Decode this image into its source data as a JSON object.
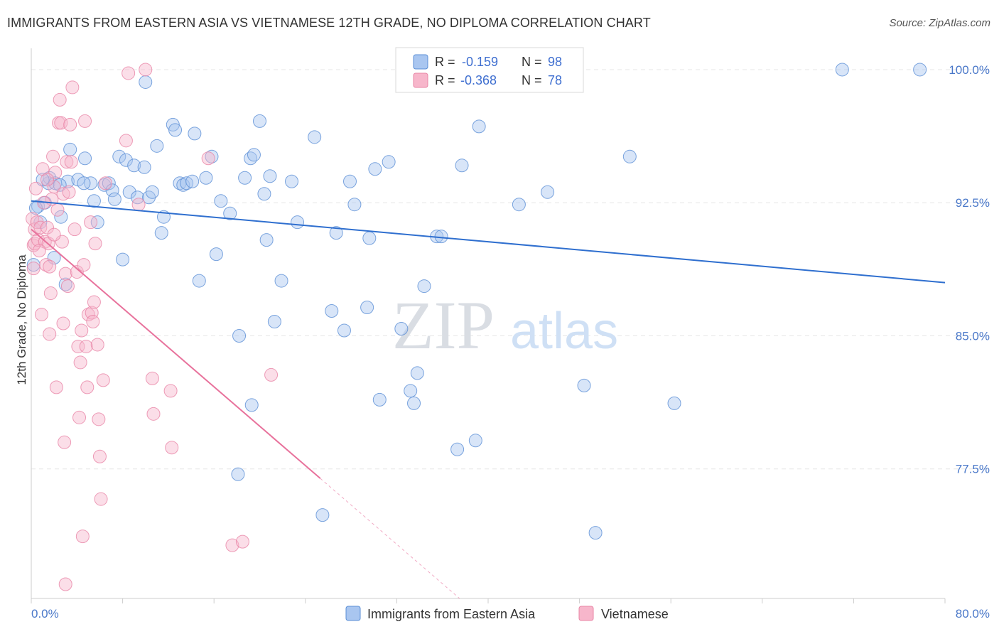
{
  "title": "IMMIGRANTS FROM EASTERN ASIA VS VIETNAMESE 12TH GRADE, NO DIPLOMA CORRELATION CHART",
  "source": "Source: ZipAtlas.com",
  "watermark": {
    "zip": "ZIP",
    "atlas": "atlas"
  },
  "legend_box": {
    "rows": [
      {
        "r_label": "R =",
        "r_value": "-0.159",
        "n_label": "N =",
        "n_value": "98",
        "color": "#a9c6f0"
      },
      {
        "r_label": "R =",
        "r_value": "-0.368",
        "n_label": "N =",
        "n_value": "78",
        "color": "#f7b6cb"
      }
    ]
  },
  "chart_data": {
    "type": "scatter",
    "title": "IMMIGRANTS FROM EASTERN ASIA VS VIETNAMESE 12TH GRADE, NO DIPLOMA CORRELATION CHART",
    "xlabel": "",
    "ylabel": "12th Grade, No Diploma",
    "xlim": [
      0,
      80
    ],
    "ylim": [
      70.2,
      101.2
    ],
    "x_tick_labels": [
      "0.0%",
      "80.0%"
    ],
    "y_ticks": [
      77.5,
      85.0,
      92.5,
      100.0
    ],
    "y_tick_labels": [
      "77.5%",
      "85.0%",
      "92.5%",
      "100.0%"
    ],
    "grid": true,
    "legend_position": "bottom",
    "series": [
      {
        "name": "Immigrants from Eastern Asia",
        "color": "#a9c6f0",
        "stroke": "#5b8fd6",
        "line_color": "#2f6fcf",
        "trend": {
          "x": [
            0,
            80
          ],
          "y": [
            92.6,
            88.0
          ],
          "dashed_after": null
        },
        "points": [
          [
            0.2,
            89.0
          ],
          [
            0.6,
            92.3
          ],
          [
            0.8,
            91.4
          ],
          [
            1.2,
            92.5
          ],
          [
            1.5,
            93.6
          ],
          [
            1.6,
            93.9
          ],
          [
            2.1,
            93.6
          ],
          [
            3.2,
            93.7
          ],
          [
            2.0,
            89.4
          ],
          [
            2.6,
            91.7
          ],
          [
            3.0,
            87.9
          ],
          [
            3.4,
            95.5
          ],
          [
            4.1,
            93.8
          ],
          [
            4.7,
            95.0
          ],
          [
            5.2,
            93.6
          ],
          [
            5.5,
            92.6
          ],
          [
            5.8,
            91.4
          ],
          [
            6.4,
            93.5
          ],
          [
            6.8,
            93.6
          ],
          [
            7.1,
            93.2
          ],
          [
            7.3,
            92.7
          ],
          [
            7.7,
            95.1
          ],
          [
            8.0,
            89.3
          ],
          [
            8.3,
            94.9
          ],
          [
            8.6,
            93.1
          ],
          [
            9.0,
            94.6
          ],
          [
            9.3,
            92.8
          ],
          [
            9.9,
            94.5
          ],
          [
            10.3,
            92.8
          ],
          [
            10.6,
            93.1
          ],
          [
            11.0,
            95.7
          ],
          [
            11.6,
            91.7
          ],
          [
            11.4,
            90.8
          ],
          [
            12.4,
            96.9
          ],
          [
            12.6,
            96.6
          ],
          [
            13.0,
            93.6
          ],
          [
            13.3,
            93.5
          ],
          [
            13.6,
            93.6
          ],
          [
            14.1,
            93.7
          ],
          [
            14.3,
            96.4
          ],
          [
            14.7,
            88.1
          ],
          [
            15.3,
            93.9
          ],
          [
            15.8,
            95.1
          ],
          [
            16.2,
            89.6
          ],
          [
            16.6,
            92.6
          ],
          [
            17.4,
            91.9
          ],
          [
            18.2,
            85.0
          ],
          [
            18.7,
            93.9
          ],
          [
            19.2,
            95.0
          ],
          [
            19.5,
            95.2
          ],
          [
            20.0,
            97.1
          ],
          [
            20.4,
            93.0
          ],
          [
            20.6,
            90.4
          ],
          [
            20.9,
            94.0
          ],
          [
            21.3,
            85.8
          ],
          [
            21.9,
            88.1
          ],
          [
            22.8,
            93.7
          ],
          [
            23.3,
            91.4
          ],
          [
            24.8,
            96.2
          ],
          [
            26.3,
            86.4
          ],
          [
            26.7,
            90.8
          ],
          [
            27.4,
            85.3
          ],
          [
            27.9,
            93.7
          ],
          [
            28.3,
            92.4
          ],
          [
            29.4,
            86.6
          ],
          [
            29.6,
            90.5
          ],
          [
            30.1,
            94.4
          ],
          [
            30.5,
            81.4
          ],
          [
            31.3,
            94.8
          ],
          [
            32.4,
            85.4
          ],
          [
            33.2,
            81.9
          ],
          [
            33.5,
            81.2
          ],
          [
            33.8,
            82.9
          ],
          [
            34.4,
            87.8
          ],
          [
            35.5,
            90.6
          ],
          [
            35.9,
            90.6
          ],
          [
            37.3,
            78.6
          ],
          [
            37.7,
            94.6
          ],
          [
            38.5,
            100.0
          ],
          [
            38.9,
            79.1
          ],
          [
            39.2,
            96.8
          ],
          [
            42.7,
            92.4
          ],
          [
            43.4,
            100.0
          ],
          [
            45.2,
            93.1
          ],
          [
            48.4,
            82.2
          ],
          [
            49.4,
            73.9
          ],
          [
            52.4,
            95.1
          ],
          [
            56.3,
            81.2
          ],
          [
            71.0,
            100.0
          ],
          [
            77.8,
            100.0
          ],
          [
            18.1,
            77.2
          ],
          [
            19.3,
            81.1
          ],
          [
            25.5,
            74.9
          ],
          [
            10.0,
            99.3
          ],
          [
            0.4,
            92.2
          ],
          [
            1.0,
            93.8
          ],
          [
            2.5,
            93.5
          ],
          [
            4.6,
            93.6
          ]
        ]
      },
      {
        "name": "Vietnamese",
        "color": "#f7b6cb",
        "stroke": "#e885a6",
        "line_color": "#e8729c",
        "trend": {
          "x": [
            0,
            37.5
          ],
          "y": [
            91.0,
            70.2
          ],
          "solid_until_x": 25.3
        },
        "points": [
          [
            0.1,
            91.6
          ],
          [
            0.2,
            90.1
          ],
          [
            0.3,
            91.0
          ],
          [
            0.3,
            90.2
          ],
          [
            0.4,
            93.3
          ],
          [
            0.5,
            91.4
          ],
          [
            0.6,
            90.4
          ],
          [
            0.8,
            91.1
          ],
          [
            0.9,
            86.2
          ],
          [
            1.0,
            94.4
          ],
          [
            1.2,
            90.3
          ],
          [
            1.3,
            89.0
          ],
          [
            1.4,
            91.1
          ],
          [
            1.5,
            90.2
          ],
          [
            1.6,
            85.1
          ],
          [
            1.7,
            87.4
          ],
          [
            1.8,
            92.7
          ],
          [
            1.9,
            95.1
          ],
          [
            2.0,
            93.4
          ],
          [
            2.1,
            94.2
          ],
          [
            2.2,
            82.1
          ],
          [
            2.4,
            97.0
          ],
          [
            2.5,
            98.3
          ],
          [
            2.6,
            97.0
          ],
          [
            2.7,
            90.3
          ],
          [
            2.8,
            93.0
          ],
          [
            2.9,
            79.0
          ],
          [
            3.0,
            88.5
          ],
          [
            3.1,
            94.8
          ],
          [
            3.2,
            87.8
          ],
          [
            3.3,
            93.1
          ],
          [
            3.4,
            96.9
          ],
          [
            3.5,
            94.8
          ],
          [
            3.6,
            99.0
          ],
          [
            3.8,
            91.0
          ],
          [
            4.0,
            88.6
          ],
          [
            4.1,
            84.4
          ],
          [
            4.2,
            80.4
          ],
          [
            4.3,
            83.5
          ],
          [
            4.4,
            85.3
          ],
          [
            4.5,
            73.7
          ],
          [
            4.6,
            89.0
          ],
          [
            4.7,
            97.1
          ],
          [
            4.8,
            84.4
          ],
          [
            4.9,
            82.1
          ],
          [
            5.0,
            86.2
          ],
          [
            5.2,
            91.4
          ],
          [
            5.3,
            86.3
          ],
          [
            5.4,
            85.8
          ],
          [
            5.5,
            86.9
          ],
          [
            5.6,
            90.2
          ],
          [
            5.8,
            84.5
          ],
          [
            5.9,
            80.3
          ],
          [
            6.0,
            78.2
          ],
          [
            6.1,
            75.8
          ],
          [
            6.3,
            82.5
          ],
          [
            6.5,
            93.6
          ],
          [
            8.3,
            96.0
          ],
          [
            8.5,
            99.8
          ],
          [
            9.4,
            92.4
          ],
          [
            10.0,
            100.0
          ],
          [
            10.6,
            82.6
          ],
          [
            10.7,
            80.6
          ],
          [
            12.2,
            81.9
          ],
          [
            12.3,
            78.7
          ],
          [
            15.5,
            95.0
          ],
          [
            17.6,
            73.2
          ],
          [
            18.5,
            73.4
          ],
          [
            21.0,
            82.8
          ],
          [
            3.0,
            71.0
          ],
          [
            1.6,
            88.9
          ],
          [
            2.3,
            92.1
          ],
          [
            2.0,
            90.7
          ],
          [
            0.7,
            89.8
          ],
          [
            1.1,
            92.5
          ],
          [
            0.2,
            88.8
          ],
          [
            1.4,
            93.8
          ],
          [
            2.8,
            85.7
          ]
        ]
      }
    ]
  }
}
